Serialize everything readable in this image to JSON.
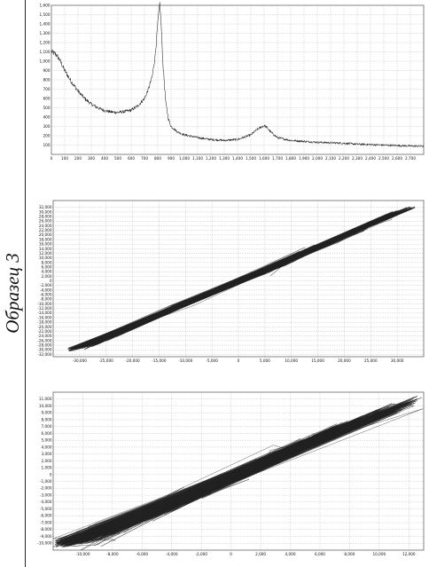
{
  "sample_label": "Образец 3",
  "chart_data": [
    {
      "type": "line",
      "title": "",
      "xlabel": "",
      "ylabel": "",
      "xlim": [
        0,
        2800
      ],
      "ylim": [
        0,
        1600
      ],
      "xticks": [
        0,
        100,
        200,
        300,
        400,
        500,
        600,
        700,
        800,
        900,
        1000,
        1100,
        1200,
        1300,
        1400,
        1500,
        1600,
        1700,
        1800,
        1900,
        2000,
        2100,
        2200,
        2300,
        2400,
        2500,
        2600,
        2700
      ],
      "xtick_labels": [
        "0",
        "100",
        "200",
        "300",
        "400",
        "500",
        "600",
        "700",
        "800",
        "900",
        "1,000",
        "1,100",
        "1,200",
        "1,300",
        "1,400",
        "1,500",
        "1,600",
        "1,700",
        "1,800",
        "1,900",
        "2,000",
        "2,100",
        "2,200",
        "2,300",
        "2,400",
        "2,500",
        "2,600",
        "2,700"
      ],
      "yticks": [
        100,
        200,
        300,
        400,
        500,
        600,
        700,
        800,
        900,
        1000,
        1100,
        1200,
        1300,
        1400,
        1500,
        1600
      ],
      "ytick_labels": [
        "100",
        "200",
        "300",
        "400",
        "500",
        "600",
        "700",
        "800",
        "900",
        "1,000",
        "1,100",
        "1,200",
        "1,300",
        "1,400",
        "1,500",
        "1,600"
      ],
      "grid": true,
      "series": [
        {
          "color": "#222222",
          "x": [
            0,
            30,
            60,
            100,
            150,
            200,
            250,
            300,
            350,
            400,
            450,
            500,
            550,
            600,
            650,
            700,
            730,
            760,
            780,
            800,
            815,
            825,
            840,
            860,
            880,
            900,
            950,
            1000,
            1100,
            1200,
            1300,
            1400,
            1500,
            1550,
            1600,
            1620,
            1650,
            1700,
            1800,
            1900,
            2000,
            2100,
            2200,
            2300,
            2400,
            2500,
            2600,
            2700,
            2800
          ],
          "y": [
            1100,
            1080,
            1020,
            900,
            780,
            680,
            600,
            540,
            500,
            470,
            455,
            450,
            460,
            475,
            520,
            600,
            700,
            850,
            1050,
            1400,
            1620,
            1400,
            950,
            560,
            380,
            300,
            240,
            210,
            180,
            160,
            150,
            160,
            210,
            270,
            310,
            290,
            240,
            180,
            150,
            140,
            130,
            125,
            120,
            110,
            105,
            100,
            95,
            90,
            88
          ]
        }
      ]
    },
    {
      "type": "line",
      "title": "",
      "xlabel": "",
      "ylabel": "",
      "xlim": [
        -35000,
        35000
      ],
      "ylim": [
        -33000,
        35000
      ],
      "xticks": [
        -30000,
        -25000,
        -20000,
        -15000,
        -10000,
        -5000,
        0,
        5000,
        10000,
        15000,
        20000,
        25000,
        30000
      ],
      "xtick_labels": [
        "-30,000",
        "-25,000",
        "-20,000",
        "-15,000",
        "-10,000",
        "-5,000",
        "0",
        "5,000",
        "10,000",
        "15,000",
        "20,000",
        "25,000",
        "30,000"
      ],
      "yticks": [
        -32000,
        -30000,
        -28000,
        -26000,
        -24000,
        -22000,
        -20000,
        -18000,
        -16000,
        -14000,
        -12000,
        -10000,
        -8000,
        -6000,
        -4000,
        -2000,
        0,
        2000,
        4000,
        6000,
        8000,
        10000,
        12000,
        14000,
        16000,
        18000,
        20000,
        22000,
        24000,
        26000,
        28000,
        30000,
        32000
      ],
      "ytick_labels": [
        "-32,000",
        "-30,000",
        "-28,000",
        "-26,000",
        "-24,000",
        "-22,000",
        "-20,000",
        "-18,000",
        "-16,000",
        "-14,000",
        "-12,000",
        "-10,000",
        "-8,000",
        "-6,000",
        "-4,000",
        "-2,000",
        "0",
        "2,000",
        "4,000",
        "6,000",
        "8,000",
        "10,000",
        "12,000",
        "14,000",
        "16,000",
        "18,000",
        "20,000",
        "22,000",
        "24,000",
        "26,000",
        "28,000",
        "30,000",
        "32,000"
      ],
      "grid": true,
      "series": [
        {
          "color": "#222222",
          "x": [
            -32000,
            -28000,
            -25000,
            -22000,
            -20000,
            -18000,
            -15000,
            -13000,
            -10000,
            -8000,
            -5000,
            -3000,
            0,
            2000,
            5000,
            7000,
            9000,
            10000,
            12000,
            15000,
            18000,
            20000,
            23000,
            25000,
            28000,
            30000,
            33000
          ],
          "y": [
            -30000,
            -28000,
            -25000,
            -22000,
            -20000,
            -17000,
            -15000,
            -12000,
            -10000,
            -8000,
            -5000,
            -3000,
            0,
            2000,
            4000,
            6000,
            8000,
            9000,
            12000,
            15000,
            17000,
            20000,
            22000,
            25000,
            28000,
            30000,
            32000
          ]
        }
      ]
    },
    {
      "type": "line",
      "title": "",
      "xlabel": "",
      "ylabel": "",
      "xlim": [
        -12000,
        13000
      ],
      "ylim": [
        -11000,
        12000
      ],
      "xticks": [
        -10000,
        -8000,
        -6000,
        -4000,
        -2000,
        0,
        2000,
        4000,
        6000,
        8000,
        10000,
        12000
      ],
      "xtick_labels": [
        "-10,000",
        "-8,000",
        "-6,000",
        "-4,000",
        "-2,000",
        "0",
        "2,000",
        "4,000",
        "6,000",
        "8,000",
        "10,000",
        "12,000"
      ],
      "yticks": [
        -10000,
        -9000,
        -8000,
        -7000,
        -6000,
        -5000,
        -4000,
        -3000,
        -2000,
        -1000,
        0,
        1000,
        2000,
        3000,
        4000,
        5000,
        6000,
        7000,
        8000,
        9000,
        10000,
        11000
      ],
      "ytick_labels": [
        "-10,000",
        "-9,000",
        "-8,000",
        "-7,000",
        "-6,000",
        "-5,000",
        "-4,000",
        "-3,000",
        "-2,000",
        "-1,000",
        "0",
        "1,000",
        "2,000",
        "3,000",
        "4,000",
        "5,000",
        "6,000",
        "7,000",
        "8,000",
        "9,000",
        "10,000",
        "11,000"
      ],
      "grid": true,
      "series": [
        {
          "color": "#222222",
          "x": [
            -11500,
            -10000,
            -9000,
            -8000,
            -7000,
            -6000,
            -5000,
            -4000,
            -3000,
            -2000,
            -1000,
            0,
            1000,
            2000,
            3000,
            4000,
            5000,
            6000,
            7000,
            8000,
            9000,
            10000,
            11000,
            12000,
            12500
          ],
          "y": [
            -10000,
            -9500,
            -8800,
            -8000,
            -7000,
            -6200,
            -5400,
            -4500,
            -3500,
            -2500,
            -1500,
            -500,
            500,
            1500,
            2500,
            3500,
            4500,
            5500,
            6500,
            7200,
            8000,
            8800,
            9500,
            10500,
            11000
          ]
        }
      ]
    }
  ]
}
